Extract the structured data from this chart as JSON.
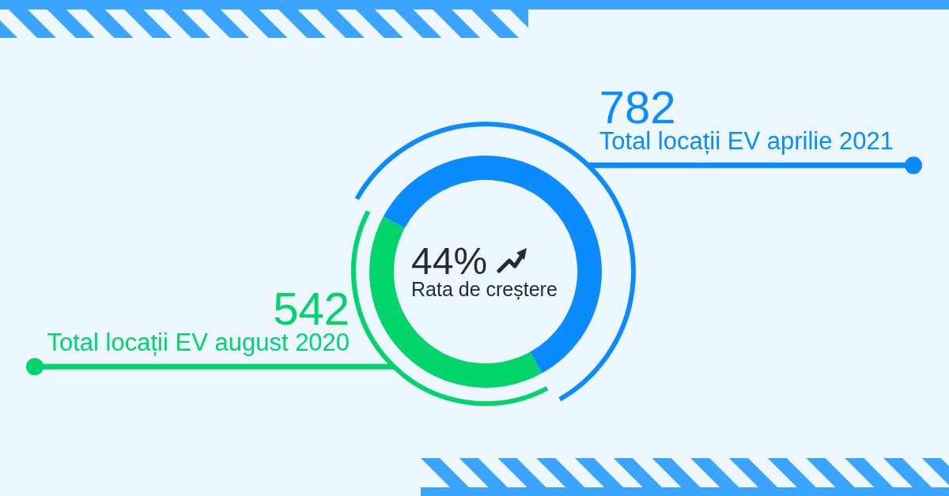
{
  "chart_data": {
    "type": "donut",
    "categories": [
      "Total locații EV august 2020",
      "Total locații EV aprilie 2021"
    ],
    "values": [
      542,
      782
    ],
    "colors": [
      "#00d46a",
      "#0a8cff"
    ],
    "data_labels": true,
    "annotations": [
      "44%",
      "Rata de creștere"
    ]
  }
}
